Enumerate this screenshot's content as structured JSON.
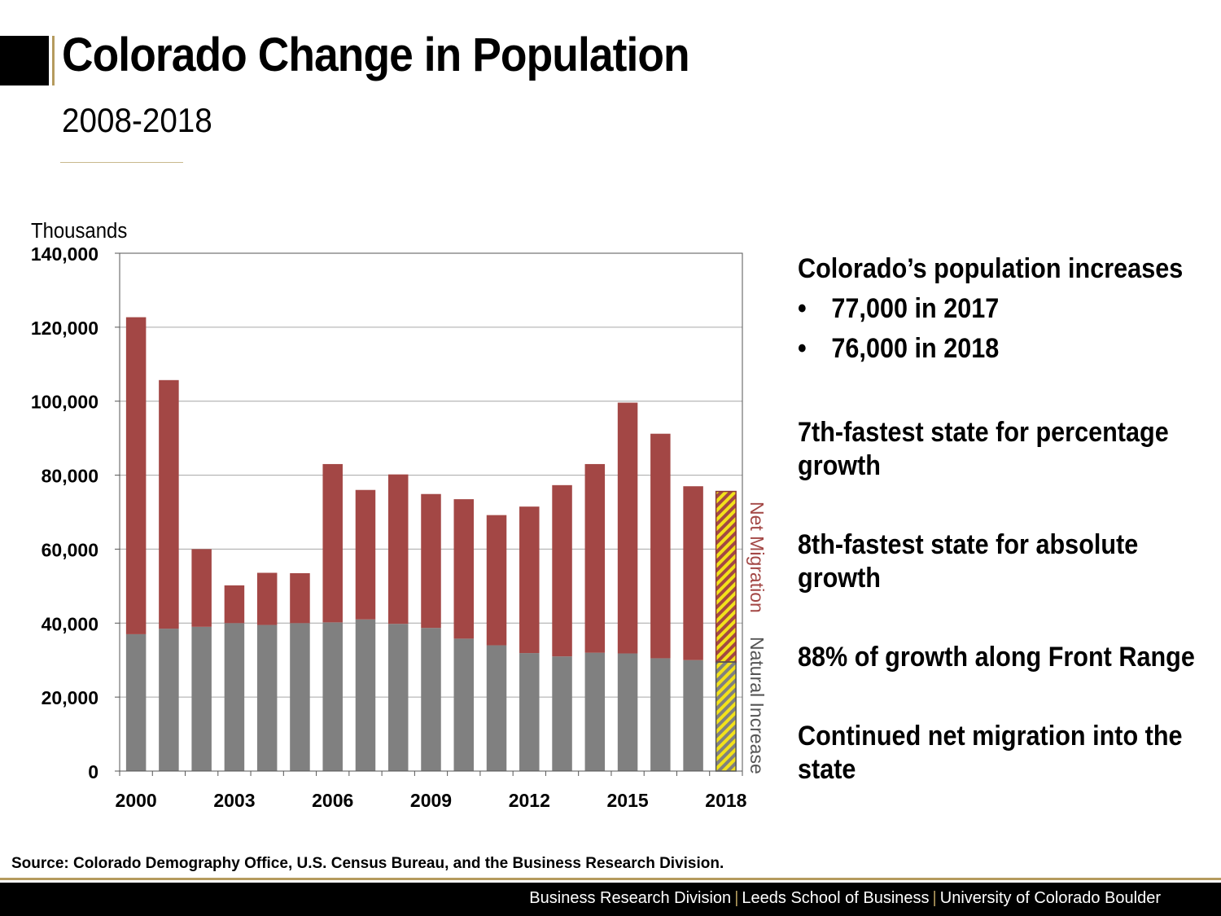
{
  "header": {
    "title": "Colorado Change in Population",
    "subtitle": "2008-2018"
  },
  "chart_data": {
    "type": "bar",
    "stacked": true,
    "unit_label": "Thousands",
    "ylim": [
      0,
      140000
    ],
    "yticks": [
      "0",
      "20,000",
      "40,000",
      "60,000",
      "80,000",
      "100,000",
      "120,000",
      "140,000"
    ],
    "categories": [
      "2000",
      "2001",
      "2002",
      "2003",
      "2004",
      "2005",
      "2006",
      "2007",
      "2008",
      "2009",
      "2010",
      "2011",
      "2012",
      "2013",
      "2014",
      "2015",
      "2016",
      "2017",
      "2018"
    ],
    "xtick_labels": [
      "2000",
      "2003",
      "2006",
      "2009",
      "2012",
      "2015",
      "2018"
    ],
    "series": [
      {
        "name": "Natural Increase",
        "color": "#808080",
        "values": [
          37000,
          38500,
          39000,
          40000,
          39500,
          40000,
          40200,
          41000,
          39800,
          38700,
          35800,
          34000,
          31900,
          31000,
          32000,
          31800,
          30500,
          30000,
          29500
        ]
      },
      {
        "name": "Net Migration",
        "color": "#a34745",
        "values": [
          85700,
          67200,
          21000,
          10200,
          14100,
          13500,
          42800,
          35000,
          40400,
          36200,
          37700,
          35200,
          39600,
          46300,
          51000,
          67800,
          60700,
          47000,
          46100
        ]
      }
    ],
    "projected_category": "2018",
    "series_labels": {
      "net_migration": "Net Migration",
      "natural_increase": "Natural Increase"
    }
  },
  "bullets": {
    "heading": "Colorado’s population increases",
    "items": [
      "77,000 in 2017",
      "76,000 in 2018"
    ],
    "bullet_char": "•",
    "p1": "7th-fastest state for percentage growth",
    "p2": "8th-fastest state for absolute growth",
    "p3": "88% of growth along Front Range",
    "p4": "Continued net migration into the state"
  },
  "source": "Source: Colorado Demography Office, U.S. Census Bureau, and the Business Research Division.",
  "footer": {
    "part1": "Business Research Division",
    "part2": "Leeds School of Business",
    "part3": "University of Colorado Boulder",
    "sep": "|"
  }
}
